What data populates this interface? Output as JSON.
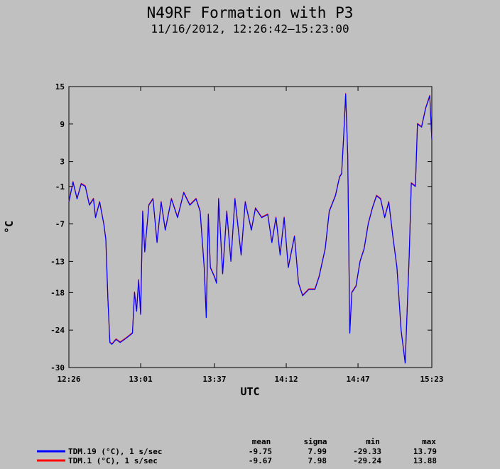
{
  "chart_data": {
    "type": "line",
    "title": "N49RF Formation with P3",
    "subtitle": "11/16/2012, 12:26:42–15:23:00",
    "xlabel": "UTC",
    "ylabel": "°C",
    "xlim": [
      "12:26",
      "15:23"
    ],
    "ylim": [
      -30,
      15
    ],
    "x_ticks": [
      "12:26",
      "13:01",
      "13:37",
      "14:12",
      "14:47",
      "15:23"
    ],
    "y_ticks": [
      "15",
      "9",
      "3",
      "-1",
      "-7",
      "-13",
      "-18",
      "-24",
      "-30"
    ],
    "grid": false,
    "legend_position": "bottom",
    "stats_headers": [
      "mean",
      "sigma",
      "min",
      "max"
    ],
    "colors": {
      "background": "#c0c0c0",
      "plot_area": "#c0c0c0",
      "series1": "#0000ff",
      "series2": "#ff0000"
    },
    "series": [
      {
        "name": "TDM.19 (°C), 1 s/sec",
        "color": "#0000ff",
        "stats": [
          "-9.75",
          "7.99",
          "-29.33",
          "13.79"
        ],
        "points": [
          [
            "12:26",
            -3.5
          ],
          [
            "12:28",
            -0.3
          ],
          [
            "12:30",
            -3.0
          ],
          [
            "12:32",
            -0.6
          ],
          [
            "12:34",
            -1.0
          ],
          [
            "12:36",
            -4.0
          ],
          [
            "12:38",
            -3.0
          ],
          [
            "12:39",
            -6.0
          ],
          [
            "12:41",
            -3.5
          ],
          [
            "12:43",
            -7.0
          ],
          [
            "12:44",
            -9.5
          ],
          [
            "12:45",
            -19.0
          ],
          [
            "12:46",
            -26.0
          ],
          [
            "12:47",
            -26.3
          ],
          [
            "12:49",
            -25.5
          ],
          [
            "12:51",
            -26.0
          ],
          [
            "12:54",
            -25.3
          ],
          [
            "12:57",
            -24.5
          ],
          [
            "12:58",
            -18.0
          ],
          [
            "12:59",
            -21.0
          ],
          [
            "13:00",
            -16.0
          ],
          [
            "13:01",
            -21.5
          ],
          [
            "13:02",
            -5.0
          ],
          [
            "13:03",
            -11.5
          ],
          [
            "13:05",
            -4.0
          ],
          [
            "13:07",
            -3.0
          ],
          [
            "13:09",
            -10.0
          ],
          [
            "13:11",
            -3.5
          ],
          [
            "13:13",
            -8.0
          ],
          [
            "13:16",
            -3.0
          ],
          [
            "13:19",
            -6.0
          ],
          [
            "13:22",
            -2.0
          ],
          [
            "13:25",
            -4.0
          ],
          [
            "13:28",
            -3.0
          ],
          [
            "13:30",
            -5.0
          ],
          [
            "13:32",
            -14.0
          ],
          [
            "13:33",
            -22.0
          ],
          [
            "13:34",
            -5.5
          ],
          [
            "13:35",
            -14.0
          ],
          [
            "13:37",
            -15.5
          ],
          [
            "13:38",
            -16.5
          ],
          [
            "13:39",
            -3.0
          ],
          [
            "13:41",
            -15.0
          ],
          [
            "13:43",
            -5.0
          ],
          [
            "13:45",
            -13.0
          ],
          [
            "13:47",
            -3.0
          ],
          [
            "13:50",
            -12.0
          ],
          [
            "13:52",
            -3.5
          ],
          [
            "13:55",
            -8.0
          ],
          [
            "13:57",
            -4.5
          ],
          [
            "14:00",
            -6.0
          ],
          [
            "14:03",
            -5.5
          ],
          [
            "14:05",
            -10.0
          ],
          [
            "14:07",
            -6.0
          ],
          [
            "14:09",
            -12.0
          ],
          [
            "14:11",
            -6.0
          ],
          [
            "14:13",
            -14.0
          ],
          [
            "14:16",
            -9.0
          ],
          [
            "14:18",
            -16.5
          ],
          [
            "14:20",
            -18.5
          ],
          [
            "14:23",
            -17.5
          ],
          [
            "14:26",
            -17.5
          ],
          [
            "14:28",
            -15.5
          ],
          [
            "14:31",
            -11.0
          ],
          [
            "14:33",
            -5.0
          ],
          [
            "14:36",
            -2.5
          ],
          [
            "14:38",
            0.5
          ],
          [
            "14:39",
            1.0
          ],
          [
            "14:40",
            7.0
          ],
          [
            "14:41",
            13.8
          ],
          [
            "14:42",
            4.0
          ],
          [
            "14:43",
            -24.5
          ],
          [
            "14:44",
            -18.0
          ],
          [
            "14:46",
            -17.0
          ],
          [
            "14:48",
            -13.0
          ],
          [
            "14:50",
            -11.0
          ],
          [
            "14:52",
            -7.0
          ],
          [
            "14:54",
            -4.5
          ],
          [
            "14:56",
            -2.5
          ],
          [
            "14:58",
            -3.0
          ],
          [
            "15:00",
            -6.0
          ],
          [
            "15:02",
            -3.5
          ],
          [
            "15:04",
            -9.0
          ],
          [
            "15:06",
            -14.0
          ],
          [
            "15:08",
            -24.0
          ],
          [
            "15:10",
            -29.3
          ],
          [
            "15:12",
            -12.0
          ],
          [
            "15:13",
            -0.5
          ],
          [
            "15:15",
            -1.0
          ],
          [
            "15:16",
            9.0
          ],
          [
            "15:18",
            8.5
          ],
          [
            "15:20",
            11.5
          ],
          [
            "15:22",
            13.5
          ],
          [
            "15:23",
            6.5
          ]
        ]
      },
      {
        "name": "TDM.1 (°C), 1 s/sec",
        "color": "#ff0000",
        "stats": [
          "-9.67",
          "7.98",
          "-29.24",
          "13.88"
        ],
        "points": [
          [
            "12:26",
            -3.4
          ],
          [
            "12:28",
            -0.2
          ],
          [
            "12:30",
            -2.9
          ],
          [
            "12:32",
            -0.5
          ],
          [
            "12:34",
            -0.9
          ],
          [
            "12:36",
            -3.9
          ],
          [
            "12:38",
            -2.9
          ],
          [
            "12:39",
            -5.9
          ],
          [
            "12:41",
            -3.4
          ],
          [
            "12:43",
            -6.9
          ],
          [
            "12:44",
            -9.4
          ],
          [
            "12:45",
            -18.9
          ],
          [
            "12:46",
            -25.9
          ],
          [
            "12:47",
            -26.2
          ],
          [
            "12:49",
            -25.4
          ],
          [
            "12:51",
            -25.9
          ],
          [
            "12:54",
            -25.2
          ],
          [
            "12:57",
            -24.4
          ],
          [
            "12:58",
            -17.9
          ],
          [
            "12:59",
            -20.9
          ],
          [
            "13:00",
            -15.9
          ],
          [
            "13:01",
            -21.4
          ],
          [
            "13:02",
            -4.9
          ],
          [
            "13:03",
            -11.4
          ],
          [
            "13:05",
            -3.9
          ],
          [
            "13:07",
            -2.9
          ],
          [
            "13:09",
            -9.9
          ],
          [
            "13:11",
            -3.4
          ],
          [
            "13:13",
            -7.9
          ],
          [
            "13:16",
            -2.9
          ],
          [
            "13:19",
            -5.9
          ],
          [
            "13:22",
            -1.9
          ],
          [
            "13:25",
            -3.9
          ],
          [
            "13:28",
            -2.9
          ],
          [
            "13:30",
            -4.9
          ],
          [
            "13:32",
            -13.9
          ],
          [
            "13:33",
            -21.9
          ],
          [
            "13:34",
            -5.4
          ],
          [
            "13:35",
            -13.9
          ],
          [
            "13:37",
            -15.4
          ],
          [
            "13:38",
            -16.4
          ],
          [
            "13:39",
            -2.9
          ],
          [
            "13:41",
            -14.9
          ],
          [
            "13:43",
            -4.9
          ],
          [
            "13:45",
            -12.9
          ],
          [
            "13:47",
            -2.9
          ],
          [
            "13:50",
            -11.9
          ],
          [
            "13:52",
            -3.4
          ],
          [
            "13:55",
            -7.9
          ],
          [
            "13:57",
            -4.4
          ],
          [
            "14:00",
            -5.9
          ],
          [
            "14:03",
            -5.4
          ],
          [
            "14:05",
            -9.9
          ],
          [
            "14:07",
            -5.9
          ],
          [
            "14:09",
            -11.9
          ],
          [
            "14:11",
            -5.9
          ],
          [
            "14:13",
            -13.9
          ],
          [
            "14:16",
            -8.9
          ],
          [
            "14:18",
            -16.4
          ],
          [
            "14:20",
            -18.4
          ],
          [
            "14:23",
            -17.4
          ],
          [
            "14:26",
            -17.4
          ],
          [
            "14:28",
            -15.4
          ],
          [
            "14:31",
            -10.9
          ],
          [
            "14:33",
            -4.9
          ],
          [
            "14:36",
            -2.4
          ],
          [
            "14:38",
            0.6
          ],
          [
            "14:39",
            1.1
          ],
          [
            "14:40",
            7.1
          ],
          [
            "14:41",
            13.9
          ],
          [
            "14:42",
            4.1
          ],
          [
            "14:43",
            -24.4
          ],
          [
            "14:44",
            -17.9
          ],
          [
            "14:46",
            -16.9
          ],
          [
            "14:48",
            -12.9
          ],
          [
            "14:50",
            -10.9
          ],
          [
            "14:52",
            -6.9
          ],
          [
            "14:54",
            -4.4
          ],
          [
            "14:56",
            -2.4
          ],
          [
            "14:58",
            -2.9
          ],
          [
            "15:00",
            -5.9
          ],
          [
            "15:02",
            -3.4
          ],
          [
            "15:04",
            -8.9
          ],
          [
            "15:06",
            -13.9
          ],
          [
            "15:08",
            -23.9
          ],
          [
            "15:10",
            -29.2
          ],
          [
            "15:12",
            -11.9
          ],
          [
            "15:13",
            -0.4
          ],
          [
            "15:15",
            -0.9
          ],
          [
            "15:16",
            9.1
          ],
          [
            "15:18",
            8.6
          ],
          [
            "15:20",
            11.6
          ],
          [
            "15:22",
            13.6
          ],
          [
            "15:23",
            6.6
          ]
        ]
      }
    ]
  }
}
